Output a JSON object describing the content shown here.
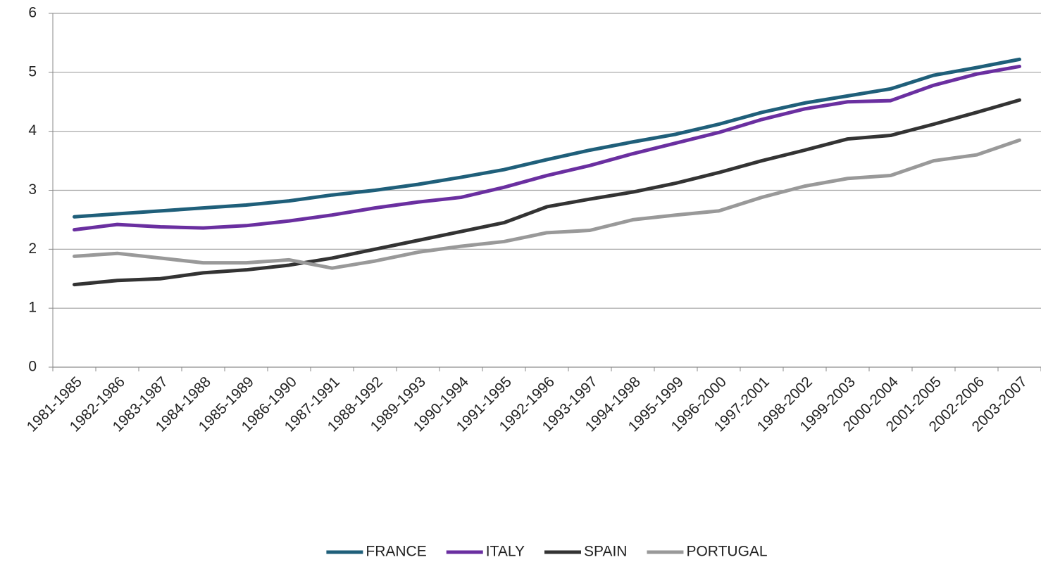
{
  "chart_data": {
    "type": "line",
    "categories": [
      "1981-1985",
      "1982-1986",
      "1983-1987",
      "1984-1988",
      "1985-1989",
      "1986-1990",
      "1987-1991",
      "1988-1992",
      "1989-1993",
      "1990-1994",
      "1991-1995",
      "1992-1996",
      "1993-1997",
      "1994-1998",
      "1995-1999",
      "1996-2000",
      "1997-2001",
      "1998-2002",
      "1999-2003",
      "2000-2004",
      "2001-2005",
      "2002-2006",
      "2003-2007"
    ],
    "series": [
      {
        "name": "FRANCE",
        "color": "#1f5f7a",
        "values": [
          2.55,
          2.6,
          2.65,
          2.7,
          2.75,
          2.82,
          2.92,
          3.0,
          3.1,
          3.22,
          3.35,
          3.52,
          3.68,
          3.82,
          3.95,
          4.12,
          4.32,
          4.48,
          4.6,
          4.72,
          4.95,
          5.08,
          5.22
        ]
      },
      {
        "name": "ITALY",
        "color": "#6a2fa0",
        "values": [
          2.33,
          2.42,
          2.38,
          2.36,
          2.4,
          2.48,
          2.58,
          2.7,
          2.8,
          2.88,
          3.05,
          3.25,
          3.42,
          3.62,
          3.8,
          3.98,
          4.2,
          4.38,
          4.5,
          4.52,
          4.78,
          4.97,
          5.1
        ]
      },
      {
        "name": "SPAIN",
        "color": "#333333",
        "values": [
          1.4,
          1.47,
          1.5,
          1.6,
          1.65,
          1.73,
          1.85,
          2.0,
          2.15,
          2.3,
          2.45,
          2.72,
          2.85,
          2.97,
          3.12,
          3.3,
          3.5,
          3.68,
          3.87,
          3.93,
          4.12,
          4.32,
          4.53
        ]
      },
      {
        "name": "PORTUGAL",
        "color": "#999999",
        "values": [
          1.88,
          1.93,
          1.85,
          1.77,
          1.77,
          1.82,
          1.68,
          1.8,
          1.95,
          2.05,
          2.13,
          2.28,
          2.32,
          2.5,
          2.58,
          2.65,
          2.88,
          3.07,
          3.2,
          3.25,
          3.5,
          3.6,
          3.85
        ]
      }
    ],
    "ylim": [
      0,
      6
    ],
    "yticks": [
      0,
      1,
      2,
      3,
      4,
      5,
      6
    ],
    "grid": true,
    "legend": "bottom"
  }
}
